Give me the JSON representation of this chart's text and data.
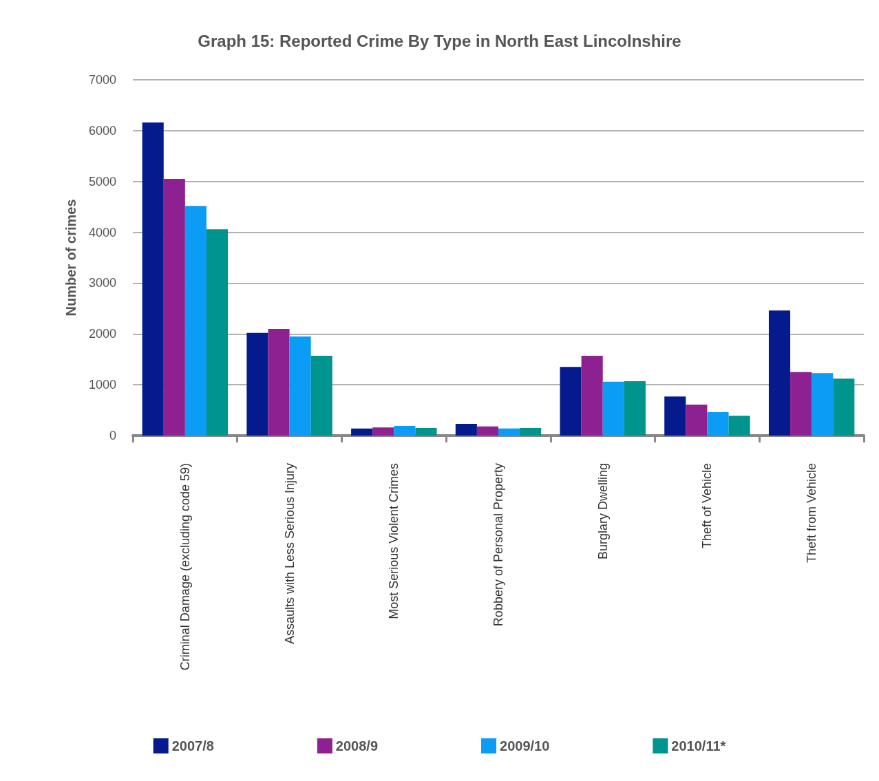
{
  "chart_data": {
    "type": "bar",
    "title": "Graph 15: Reported Crime By Type in North East Lincolnshire",
    "ylabel": "Number of crimes",
    "categories": [
      "Criminal Damage (excluding code 59)",
      "Assaults with Less Serious Injury",
      "Most Serious Violent Crimes",
      "Robbery of Personal Property",
      "Burglary Dwelling",
      "Theft of Vehicle",
      "Theft from Vehicle"
    ],
    "series": [
      {
        "name": "2007/8",
        "color": "#051a8d",
        "values": [
          6160,
          2020,
          140,
          230,
          1350,
          770,
          2460
        ]
      },
      {
        "name": "2008/9",
        "color": "#8e2191",
        "values": [
          5050,
          2100,
          160,
          180,
          1570,
          610,
          1250
        ]
      },
      {
        "name": "2009/10",
        "color": "#0b9df5",
        "values": [
          4520,
          1950,
          190,
          140,
          1060,
          460,
          1230
        ]
      },
      {
        "name": "2010/11*",
        "color": "#00948e",
        "values": [
          4060,
          1570,
          150,
          150,
          1070,
          390,
          1120
        ]
      }
    ],
    "ylim": [
      0,
      7000
    ],
    "yticks": [
      0,
      1000,
      2000,
      3000,
      4000,
      5000,
      6000,
      7000
    ],
    "grid": "y",
    "legend": "bottom"
  }
}
